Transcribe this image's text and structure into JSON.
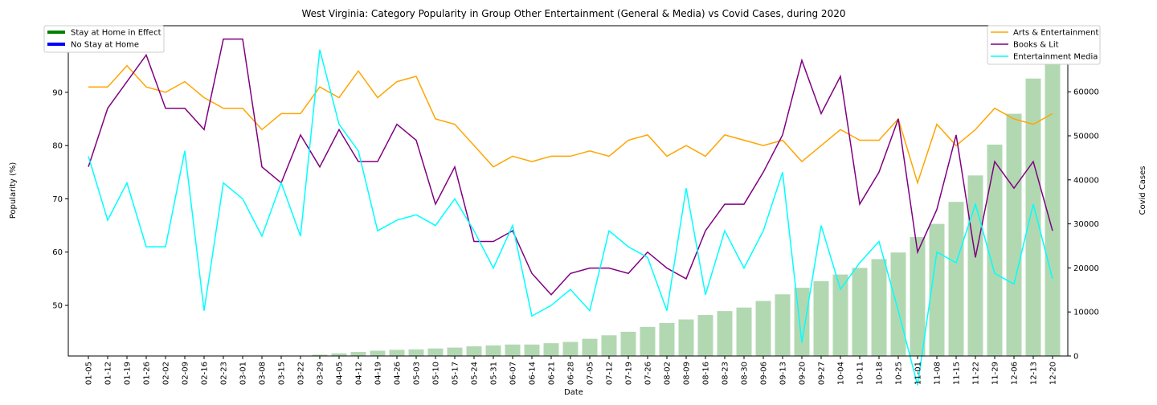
{
  "chart_data": {
    "type": "line",
    "title": "West Virginia: Category Popularity in Group Other Entertainment (General & Media) vs Covid Cases, during 2020",
    "xlabel": "Date",
    "ylabel": "Popularity (%)",
    "y2label": "Covid Cases",
    "ylim": [
      40.5,
      102.5
    ],
    "y2lim": [
      0,
      75000
    ],
    "yticks": [
      50,
      60,
      70,
      80,
      90,
      100
    ],
    "y2ticks": [
      0,
      10000,
      20000,
      30000,
      40000,
      50000,
      60000,
      70000
    ],
    "categories": [
      "01-05",
      "01-12",
      "01-19",
      "01-26",
      "02-02",
      "02-09",
      "02-16",
      "02-23",
      "03-01",
      "03-08",
      "03-15",
      "03-22",
      "03-29",
      "04-05",
      "04-12",
      "04-19",
      "04-26",
      "05-03",
      "05-10",
      "05-17",
      "05-24",
      "05-31",
      "06-07",
      "06-14",
      "06-21",
      "06-28",
      "07-05",
      "07-12",
      "07-19",
      "07-26",
      "08-02",
      "08-09",
      "08-16",
      "08-23",
      "08-30",
      "09-06",
      "09-13",
      "09-20",
      "09-27",
      "10-04",
      "10-11",
      "10-18",
      "10-25",
      "11-01",
      "11-08",
      "11-15",
      "11-22",
      "11-29",
      "12-06",
      "12-13",
      "12-20"
    ],
    "series": [
      {
        "name": "Arts & Entertainment",
        "color": "#ffa500",
        "values": [
          91,
          91,
          95,
          91,
          90,
          92,
          89,
          87,
          87,
          83,
          86,
          86,
          91,
          89,
          94,
          89,
          92,
          93,
          85,
          84,
          80,
          76,
          78,
          77,
          78,
          78,
          79,
          78,
          81,
          82,
          78,
          80,
          78,
          82,
          81,
          80,
          81,
          77,
          80,
          83,
          81,
          81,
          85,
          73,
          84,
          80,
          83,
          87,
          85,
          84,
          86
        ]
      },
      {
        "name": "Books & Lit",
        "color": "#800080",
        "values": [
          76,
          87,
          92,
          97,
          87,
          87,
          83,
          100,
          100,
          76,
          73,
          82,
          76,
          83,
          77,
          77,
          84,
          81,
          69,
          76,
          62,
          62,
          64,
          56,
          52,
          56,
          57,
          57,
          56,
          60,
          57,
          55,
          64,
          69,
          69,
          75,
          82,
          96,
          86,
          93,
          69,
          75,
          85,
          60,
          68,
          82,
          59,
          77,
          72,
          77,
          64
        ]
      },
      {
        "name": "Entertainment Media",
        "color": "#00ffff",
        "values": [
          78,
          66,
          73,
          61,
          61,
          79,
          49,
          73,
          70,
          63,
          73,
          63,
          98,
          84,
          79,
          64,
          66,
          67,
          65,
          70,
          64,
          57,
          65,
          48,
          50,
          53,
          49,
          64,
          61,
          59,
          49,
          72,
          52,
          64,
          57,
          64,
          75,
          43,
          65,
          53,
          58,
          62,
          49,
          35,
          60,
          58,
          69,
          56,
          54,
          69,
          55
        ]
      }
    ],
    "bars": {
      "name": "Covid Cases",
      "color": "#b2d8b2",
      "values": [
        0,
        0,
        0,
        0,
        0,
        0,
        0,
        0,
        0,
        0,
        0,
        50,
        300,
        600,
        900,
        1200,
        1400,
        1500,
        1700,
        1900,
        2200,
        2400,
        2600,
        2600,
        2900,
        3200,
        3900,
        4700,
        5500,
        6600,
        7500,
        8300,
        9300,
        10200,
        11000,
        12500,
        14000,
        15500,
        17000,
        18500,
        20000,
        22000,
        23500,
        27000,
        30000,
        35000,
        41000,
        48000,
        55000,
        63000,
        72000
      ]
    },
    "legend_left": [
      {
        "label": "Stay at Home in Effect",
        "color": "#008000"
      },
      {
        "label": "No Stay at Home",
        "color": "#0000ff"
      }
    ],
    "legend_right_position": "top-right",
    "legend_left_position": "top-left",
    "grid": false
  }
}
